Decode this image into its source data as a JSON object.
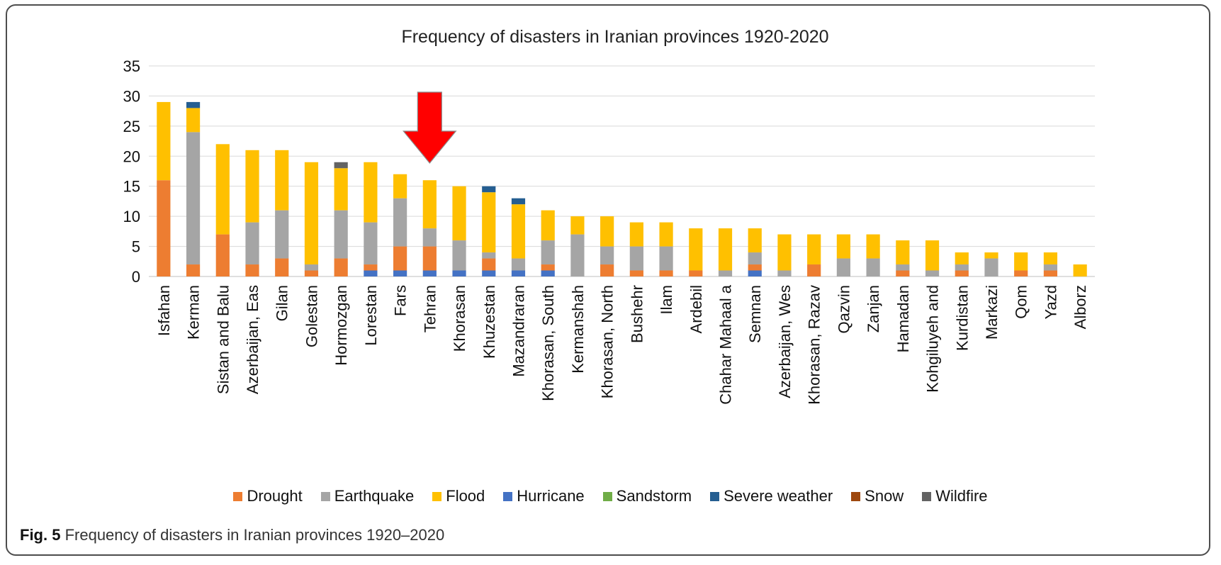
{
  "chart_data": {
    "type": "bar",
    "stacked": true,
    "title": "Frequency of disasters in Iranian provinces 1920-2020",
    "xlabel": "",
    "ylabel": "",
    "ylim": [
      0,
      35
    ],
    "yticks": [
      0,
      5,
      10,
      15,
      20,
      25,
      30,
      35
    ],
    "grid": true,
    "legend_position": "bottom",
    "categories": [
      "Isfahan",
      "Kerman",
      "Sistan and Balu",
      "Azerbaijan, Eas",
      "Gilan",
      "Golestan",
      "Hormozgan",
      "Lorestan",
      "Fars",
      "Tehran",
      "Khorasan",
      "Khuzestan",
      "Mazandraran",
      "Khorasan, South",
      "Kermanshah",
      "Khorasan, North",
      "Bushehr",
      "Ilam",
      "Ardebil",
      "Chahar Mahaal a",
      "Semnan",
      "Azerbaijan, Wes",
      "Khorasan, Razav",
      "Qazvin",
      "Zanjan",
      "Hamadan",
      "Kohgiluyeh and",
      "Kurdistan",
      "Markazi",
      "Qom",
      "Yazd",
      "Alborz"
    ],
    "series": [
      {
        "name": "Hurricane",
        "color": "#4472c4",
        "values": [
          0,
          0,
          0,
          0,
          0,
          0,
          0,
          1,
          1,
          1,
          1,
          1,
          1,
          1,
          0,
          0,
          0,
          0,
          0,
          0,
          1,
          0,
          0,
          0,
          0,
          0,
          0,
          0,
          0,
          0,
          0,
          0
        ]
      },
      {
        "name": "Drought",
        "color": "#ed7d31",
        "values": [
          16,
          2,
          7,
          2,
          3,
          1,
          3,
          1,
          4,
          4,
          0,
          2,
          0,
          1,
          0,
          2,
          1,
          1,
          1,
          0,
          1,
          0,
          2,
          0,
          0,
          1,
          0,
          1,
          0,
          1,
          1,
          0
        ]
      },
      {
        "name": "Earthquake",
        "color": "#a5a5a5",
        "values": [
          0,
          22,
          0,
          7,
          8,
          1,
          8,
          7,
          8,
          3,
          5,
          1,
          2,
          4,
          7,
          3,
          4,
          4,
          0,
          1,
          2,
          1,
          0,
          3,
          3,
          1,
          1,
          1,
          3,
          0,
          1,
          0
        ]
      },
      {
        "name": "Flood",
        "color": "#ffc000",
        "values": [
          13,
          4,
          15,
          12,
          10,
          17,
          7,
          10,
          4,
          8,
          9,
          10,
          9,
          5,
          3,
          5,
          4,
          4,
          7,
          7,
          4,
          6,
          5,
          4,
          4,
          4,
          5,
          2,
          1,
          3,
          2,
          2
        ]
      },
      {
        "name": "Sandstorm",
        "color": "#70ad47",
        "values": [
          0,
          0,
          0,
          0,
          0,
          0,
          0,
          0,
          0,
          0,
          0,
          0,
          0,
          0,
          0,
          0,
          0,
          0,
          0,
          0,
          0,
          0,
          0,
          0,
          0,
          0,
          0,
          0,
          0,
          0,
          0,
          0
        ]
      },
      {
        "name": "Severe weather",
        "color": "#255e91",
        "values": [
          0,
          1,
          0,
          0,
          0,
          0,
          0,
          0,
          0,
          0,
          0,
          1,
          1,
          0,
          0,
          0,
          0,
          0,
          0,
          0,
          0,
          0,
          0,
          0,
          0,
          0,
          0,
          0,
          0,
          0,
          0,
          0
        ]
      },
      {
        "name": "Snow",
        "color": "#9e480e",
        "values": [
          0,
          0,
          0,
          0,
          0,
          0,
          0,
          0,
          0,
          0,
          0,
          0,
          0,
          0,
          0,
          0,
          0,
          0,
          0,
          0,
          0,
          0,
          0,
          0,
          0,
          0,
          0,
          0,
          0,
          0,
          0,
          0
        ]
      },
      {
        "name": "Wildfire",
        "color": "#636363",
        "values": [
          0,
          0,
          0,
          0,
          0,
          0,
          1,
          0,
          0,
          0,
          0,
          0,
          0,
          0,
          0,
          0,
          0,
          0,
          0,
          0,
          0,
          0,
          0,
          0,
          0,
          0,
          0,
          0,
          0,
          0,
          0,
          0
        ]
      }
    ],
    "legend": [
      {
        "name": "Drought",
        "color": "#ed7d31"
      },
      {
        "name": "Earthquake",
        "color": "#a5a5a5"
      },
      {
        "name": "Flood",
        "color": "#ffc000"
      },
      {
        "name": "Hurricane",
        "color": "#4472c4"
      },
      {
        "name": "Sandstorm",
        "color": "#70ad47"
      },
      {
        "name": "Severe weather",
        "color": "#255e91"
      },
      {
        "name": "Snow",
        "color": "#9e480e"
      },
      {
        "name": "Wildfire",
        "color": "#636363"
      }
    ],
    "annotation": {
      "type": "arrow",
      "color": "#ff0000",
      "points_to": "Tehran"
    }
  },
  "caption": {
    "label": "Fig. 5",
    "text": "Frequency of disasters in Iranian provinces 1920–2020"
  }
}
